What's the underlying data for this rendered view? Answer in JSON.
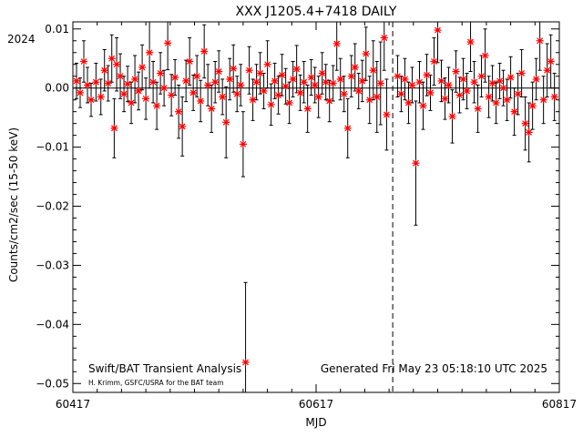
{
  "chart_data": {
    "type": "scatter",
    "title": "XXX J1205.4+7418  DAILY",
    "year_label": "2024",
    "xlabel": "MJD",
    "ylabel": "Counts/cm2/sec (15-50 keV)",
    "xlim": [
      60417,
      60817
    ],
    "ylim": [
      -0.0515,
      0.0112
    ],
    "x_ticks": [
      60417,
      60617,
      60817
    ],
    "x_tick_labels": [
      "60417",
      "60617",
      "60817"
    ],
    "y_ticks": [
      0.01,
      0.0,
      -0.01,
      -0.02,
      -0.03,
      -0.04,
      -0.05
    ],
    "y_tick_labels": [
      "0.01",
      "0.00",
      "−0.01",
      "−0.02",
      "−0.03",
      "−0.04",
      "−0.05"
    ],
    "grid": false,
    "marker": "red-asterisk",
    "marker_color": "#ff0000",
    "errorbar_color": "#000000",
    "vline_dashed_x": 60680,
    "zero_line_y": 0.0,
    "footer_left": "Swift/BAT Transient Analysis",
    "footer_credit": "H. Krimm, GSFC/USRA for the BAT team",
    "footer_right": "Generated Fri May 23 05:18:10 UTC 2025",
    "points": [
      {
        "x": 60420,
        "y": 0.0012,
        "err": 0.003
      },
      {
        "x": 60423,
        "y": -0.0008,
        "err": 0.0025
      },
      {
        "x": 60426,
        "y": 0.0045,
        "err": 0.0035
      },
      {
        "x": 60429,
        "y": 0.0005,
        "err": 0.003
      },
      {
        "x": 60432,
        "y": -0.002,
        "err": 0.0028
      },
      {
        "x": 60436,
        "y": 0.001,
        "err": 0.0032
      },
      {
        "x": 60440,
        "y": -0.0015,
        "err": 0.003
      },
      {
        "x": 60443,
        "y": 0.003,
        "err": 0.0035
      },
      {
        "x": 60446,
        "y": 0.0008,
        "err": 0.003
      },
      {
        "x": 60449,
        "y": 0.005,
        "err": 0.004
      },
      {
        "x": 60451,
        "y": -0.0068,
        "err": 0.005
      },
      {
        "x": 60453,
        "y": 0.004,
        "err": 0.0045
      },
      {
        "x": 60456,
        "y": 0.002,
        "err": 0.0038
      },
      {
        "x": 60459,
        "y": -0.001,
        "err": 0.003
      },
      {
        "x": 60462,
        "y": 0.0007,
        "err": 0.003
      },
      {
        "x": 60465,
        "y": -0.0025,
        "err": 0.0035
      },
      {
        "x": 60468,
        "y": 0.0015,
        "err": 0.004
      },
      {
        "x": 60471,
        "y": -0.0005,
        "err": 0.0032
      },
      {
        "x": 60474,
        "y": 0.0035,
        "err": 0.0038
      },
      {
        "x": 60477,
        "y": -0.0018,
        "err": 0.0035
      },
      {
        "x": 60480,
        "y": 0.006,
        "err": 0.006
      },
      {
        "x": 60483,
        "y": 0.001,
        "err": 0.0035
      },
      {
        "x": 60486,
        "y": -0.003,
        "err": 0.004
      },
      {
        "x": 60489,
        "y": 0.0025,
        "err": 0.0035
      },
      {
        "x": 60492,
        "y": 0.0,
        "err": 0.003
      },
      {
        "x": 60495,
        "y": 0.0076,
        "err": 0.0045
      },
      {
        "x": 60498,
        "y": -0.0012,
        "err": 0.0035
      },
      {
        "x": 60501,
        "y": 0.0018,
        "err": 0.003
      },
      {
        "x": 60504,
        "y": -0.004,
        "err": 0.0045
      },
      {
        "x": 60507,
        "y": -0.0065,
        "err": 0.005
      },
      {
        "x": 60510,
        "y": 0.0012,
        "err": 0.0035
      },
      {
        "x": 60513,
        "y": 0.0045,
        "err": 0.004
      },
      {
        "x": 60516,
        "y": -0.0008,
        "err": 0.003
      },
      {
        "x": 60519,
        "y": 0.002,
        "err": 0.0035
      },
      {
        "x": 60522,
        "y": -0.0022,
        "err": 0.0035
      },
      {
        "x": 60525,
        "y": 0.0062,
        "err": 0.0045
      },
      {
        "x": 60528,
        "y": 0.0005,
        "err": 0.0035
      },
      {
        "x": 60531,
        "y": -0.0035,
        "err": 0.004
      },
      {
        "x": 60534,
        "y": 0.001,
        "err": 0.0035
      },
      {
        "x": 60537,
        "y": 0.0028,
        "err": 0.0035
      },
      {
        "x": 60540,
        "y": -0.0015,
        "err": 0.003
      },
      {
        "x": 60543,
        "y": -0.0058,
        "err": 0.006
      },
      {
        "x": 60546,
        "y": 0.0015,
        "err": 0.0035
      },
      {
        "x": 60549,
        "y": 0.0033,
        "err": 0.004
      },
      {
        "x": 60552,
        "y": -0.001,
        "err": 0.003
      },
      {
        "x": 60555,
        "y": 0.0005,
        "err": 0.0035
      },
      {
        "x": 60557,
        "y": -0.0095,
        "err": 0.0055
      },
      {
        "x": 60559,
        "y": -0.0464,
        "err": 0.0135
      },
      {
        "x": 60562,
        "y": 0.003,
        "err": 0.004
      },
      {
        "x": 60565,
        "y": -0.002,
        "err": 0.0035
      },
      {
        "x": 60568,
        "y": 0.001,
        "err": 0.003
      },
      {
        "x": 60571,
        "y": 0.0025,
        "err": 0.0035
      },
      {
        "x": 60574,
        "y": -0.0005,
        "err": 0.003
      },
      {
        "x": 60577,
        "y": 0.004,
        "err": 0.004
      },
      {
        "x": 60580,
        "y": -0.0028,
        "err": 0.0035
      },
      {
        "x": 60583,
        "y": 0.0012,
        "err": 0.003
      },
      {
        "x": 60586,
        "y": -0.0012,
        "err": 0.0032
      },
      {
        "x": 60589,
        "y": 0.0022,
        "err": 0.0035
      },
      {
        "x": 60592,
        "y": 0.0003,
        "err": 0.003
      },
      {
        "x": 60595,
        "y": -0.0025,
        "err": 0.0035
      },
      {
        "x": 60598,
        "y": 0.0015,
        "err": 0.003
      },
      {
        "x": 60601,
        "y": 0.0032,
        "err": 0.004
      },
      {
        "x": 60604,
        "y": -0.0008,
        "err": 0.003
      },
      {
        "x": 60607,
        "y": 0.001,
        "err": 0.0035
      },
      {
        "x": 60610,
        "y": -0.0035,
        "err": 0.004
      },
      {
        "x": 60613,
        "y": 0.0018,
        "err": 0.003
      },
      {
        "x": 60616,
        "y": 0.0005,
        "err": 0.003
      },
      {
        "x": 60619,
        "y": -0.0015,
        "err": 0.0035
      },
      {
        "x": 60622,
        "y": 0.0025,
        "err": 0.0035
      },
      {
        "x": 60625,
        "y": 0.001,
        "err": 0.003
      },
      {
        "x": 60628,
        "y": -0.0022,
        "err": 0.0035
      },
      {
        "x": 60631,
        "y": 0.0008,
        "err": 0.003
      },
      {
        "x": 60634,
        "y": 0.0075,
        "err": 0.0045
      },
      {
        "x": 60637,
        "y": 0.0015,
        "err": 0.0035
      },
      {
        "x": 60640,
        "y": -0.001,
        "err": 0.003
      },
      {
        "x": 60643,
        "y": -0.0068,
        "err": 0.005
      },
      {
        "x": 60646,
        "y": 0.002,
        "err": 0.0035
      },
      {
        "x": 60649,
        "y": 0.0035,
        "err": 0.004
      },
      {
        "x": 60652,
        "y": -0.0005,
        "err": 0.003
      },
      {
        "x": 60655,
        "y": 0.0012,
        "err": 0.0035
      },
      {
        "x": 60658,
        "y": 0.0058,
        "err": 0.0045
      },
      {
        "x": 60661,
        "y": -0.002,
        "err": 0.004
      },
      {
        "x": 60664,
        "y": 0.003,
        "err": 0.005
      },
      {
        "x": 60667,
        "y": -0.0015,
        "err": 0.006
      },
      {
        "x": 60670,
        "y": 0.0008,
        "err": 0.007
      },
      {
        "x": 60673,
        "y": 0.0085,
        "err": 0.0055
      },
      {
        "x": 60675,
        "y": -0.0045,
        "err": 0.006
      },
      {
        "x": 60684,
        "y": 0.002,
        "err": 0.0035
      },
      {
        "x": 60687,
        "y": -0.001,
        "err": 0.003
      },
      {
        "x": 60690,
        "y": 0.0015,
        "err": 0.0035
      },
      {
        "x": 60693,
        "y": -0.0025,
        "err": 0.0035
      },
      {
        "x": 60696,
        "y": 0.0005,
        "err": 0.003
      },
      {
        "x": 60699,
        "y": -0.0127,
        "err": 0.0105
      },
      {
        "x": 60702,
        "y": 0.001,
        "err": 0.0035
      },
      {
        "x": 60705,
        "y": -0.003,
        "err": 0.004
      },
      {
        "x": 60708,
        "y": 0.0022,
        "err": 0.0035
      },
      {
        "x": 60711,
        "y": -0.0008,
        "err": 0.003
      },
      {
        "x": 60714,
        "y": 0.0045,
        "err": 0.004
      },
      {
        "x": 60717,
        "y": 0.0098,
        "err": 0.0055
      },
      {
        "x": 60720,
        "y": 0.0012,
        "err": 0.0035
      },
      {
        "x": 60723,
        "y": -0.0018,
        "err": 0.0035
      },
      {
        "x": 60726,
        "y": 0.0005,
        "err": 0.003
      },
      {
        "x": 60729,
        "y": -0.0048,
        "err": 0.0045
      },
      {
        "x": 60732,
        "y": 0.0028,
        "err": 0.0035
      },
      {
        "x": 60735,
        "y": -0.0012,
        "err": 0.003
      },
      {
        "x": 60738,
        "y": 0.0015,
        "err": 0.0035
      },
      {
        "x": 60741,
        "y": -0.0005,
        "err": 0.003
      },
      {
        "x": 60744,
        "y": 0.0078,
        "err": 0.005
      },
      {
        "x": 60747,
        "y": 0.001,
        "err": 0.0035
      },
      {
        "x": 60750,
        "y": -0.0035,
        "err": 0.004
      },
      {
        "x": 60753,
        "y": 0.002,
        "err": 0.0035
      },
      {
        "x": 60756,
        "y": 0.0055,
        "err": 0.0045
      },
      {
        "x": 60759,
        "y": -0.0015,
        "err": 0.0035
      },
      {
        "x": 60762,
        "y": 0.0008,
        "err": 0.003
      },
      {
        "x": 60765,
        "y": -0.0025,
        "err": 0.0035
      },
      {
        "x": 60768,
        "y": 0.0012,
        "err": 0.003
      },
      {
        "x": 60771,
        "y": 0.0,
        "err": 0.003
      },
      {
        "x": 60774,
        "y": -0.002,
        "err": 0.0035
      },
      {
        "x": 60777,
        "y": 0.0018,
        "err": 0.0035
      },
      {
        "x": 60780,
        "y": -0.004,
        "err": 0.004
      },
      {
        "x": 60783,
        "y": -0.001,
        "err": 0.0035
      },
      {
        "x": 60786,
        "y": 0.0025,
        "err": 0.004
      },
      {
        "x": 60789,
        "y": -0.006,
        "err": 0.0045
      },
      {
        "x": 60792,
        "y": -0.0075,
        "err": 0.005
      },
      {
        "x": 60795,
        "y": -0.003,
        "err": 0.004
      },
      {
        "x": 60798,
        "y": 0.0015,
        "err": 0.0035
      },
      {
        "x": 60801,
        "y": 0.008,
        "err": 0.005
      },
      {
        "x": 60804,
        "y": -0.002,
        "err": 0.004
      },
      {
        "x": 60807,
        "y": 0.003,
        "err": 0.0045
      },
      {
        "x": 60810,
        "y": 0.0045,
        "err": 0.0045
      },
      {
        "x": 60813,
        "y": -0.0015,
        "err": 0.004
      }
    ]
  }
}
